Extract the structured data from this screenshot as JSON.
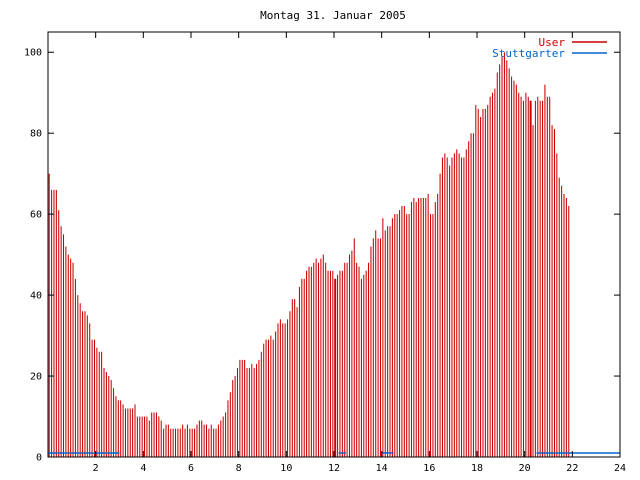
{
  "chart_data": {
    "type": "bar",
    "title": "Montag 31. Januar 2005",
    "xlim": [
      0,
      24
    ],
    "ylim": [
      0,
      105
    ],
    "x_ticks": [
      2,
      4,
      6,
      8,
      10,
      12,
      14,
      16,
      18,
      20,
      22,
      24
    ],
    "y_ticks": [
      0,
      20,
      40,
      60,
      80,
      100
    ],
    "grid": false,
    "legend_position": "top-right",
    "series": [
      {
        "name": "User",
        "color": "#cc0000",
        "x_start": 0,
        "x_step": 0.1,
        "values": [
          70,
          66,
          66,
          66,
          61,
          57,
          55,
          52,
          50,
          49,
          48,
          44,
          40,
          38,
          36,
          36,
          35,
          33,
          29,
          29,
          27,
          26,
          26,
          22,
          21,
          20,
          19,
          17,
          15,
          14,
          14,
          13,
          12,
          12,
          12,
          12,
          13,
          10,
          10,
          10,
          10,
          10,
          9,
          11,
          11,
          11,
          10,
          9,
          7,
          8,
          8,
          7,
          7,
          7,
          7,
          7,
          8,
          7,
          8,
          7,
          7,
          7,
          8,
          9,
          9,
          8,
          8,
          7,
          8,
          7,
          7,
          8,
          9,
          10,
          11,
          14,
          16,
          19,
          20,
          22,
          24,
          24,
          24,
          22,
          22,
          23,
          22,
          23,
          24,
          26,
          28,
          29,
          29,
          30,
          29,
          31,
          33,
          34,
          33,
          33,
          34,
          36,
          39,
          39,
          37,
          42,
          44,
          44,
          46,
          47,
          47,
          48,
          49,
          48,
          49,
          50,
          48,
          46,
          46,
          46,
          44,
          45,
          46,
          46,
          48,
          48,
          50,
          51,
          54,
          48,
          47,
          44,
          45,
          46,
          48,
          52,
          54,
          56,
          54,
          54,
          59,
          56,
          57,
          57,
          59,
          60,
          60,
          61,
          62,
          62,
          60,
          60,
          63,
          64,
          63,
          64,
          64,
          64,
          64,
          65,
          60,
          60,
          63,
          65,
          70,
          74,
          75,
          74,
          72,
          74,
          75,
          76,
          75,
          74,
          74,
          76,
          78,
          80,
          80,
          87,
          86,
          84,
          86,
          86,
          87,
          89,
          90,
          91,
          95,
          97,
          99,
          100,
          98,
          96,
          94,
          93,
          92,
          90,
          89,
          88,
          90,
          89,
          88,
          82,
          88,
          89,
          88,
          88,
          92,
          89,
          89,
          82,
          81,
          75,
          69,
          67,
          65,
          64,
          62
        ],
        "line_markers_x": [
          12.0,
          20.2
        ],
        "line_markers_y": [
          0,
          0
        ]
      },
      {
        "name": "Stuttgarter",
        "color": "#0066cc",
        "segments": [
          {
            "x_from": 0.0,
            "x_to": 3.0,
            "value": 1
          },
          {
            "x_from": 12.2,
            "x_to": 12.5,
            "value": 1
          },
          {
            "x_from": 14.0,
            "x_to": 14.5,
            "value": 1
          },
          {
            "x_from": 20.5,
            "x_to": 24.0,
            "value": 1
          }
        ]
      }
    ]
  }
}
